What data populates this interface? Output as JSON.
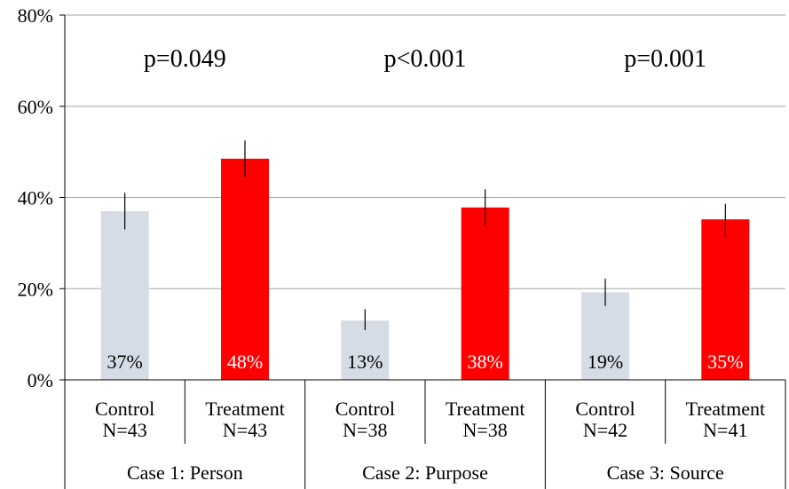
{
  "chart_data": {
    "type": "bar",
    "ylim": [
      0,
      80
    ],
    "yticks": [
      0,
      20,
      40,
      60,
      80
    ],
    "ytick_labels": [
      "0%",
      "20%",
      "40%",
      "60%",
      "80%"
    ],
    "groups": [
      {
        "name": "Case 1: Person",
        "p_value": "p=0.049",
        "bars": [
          {
            "condition": "Control",
            "n": "N=43",
            "value": 37,
            "label": "37%",
            "err_low": 33,
            "err_high": 41,
            "color": "#d6dce5"
          },
          {
            "condition": "Treatment",
            "n": "N=43",
            "value": 48.5,
            "label": "48%",
            "err_low": 44.5,
            "err_high": 52.5,
            "color": "#ff0000"
          }
        ]
      },
      {
        "name": "Case 2: Purpose",
        "p_value": "p<0.001",
        "bars": [
          {
            "condition": "Control",
            "n": "N=38",
            "value": 13,
            "label": "13%",
            "err_low": 10.9,
            "err_high": 15.5,
            "color": "#d6dce5"
          },
          {
            "condition": "Treatment",
            "n": "N=38",
            "value": 37.8,
            "label": "38%",
            "err_low": 33.8,
            "err_high": 41.8,
            "color": "#ff0000"
          }
        ]
      },
      {
        "name": "Case 3: Source",
        "p_value": "p=0.001",
        "bars": [
          {
            "condition": "Control",
            "n": "N=42",
            "value": 19.2,
            "label": "19%",
            "err_low": 16.2,
            "err_high": 22.2,
            "color": "#d6dce5"
          },
          {
            "condition": "Treatment",
            "n": "N=41",
            "value": 35.2,
            "label": "35%",
            "err_low": 31.2,
            "err_high": 38.6,
            "color": "#ff0000"
          }
        ]
      }
    ],
    "grid": true,
    "legend": "none"
  }
}
